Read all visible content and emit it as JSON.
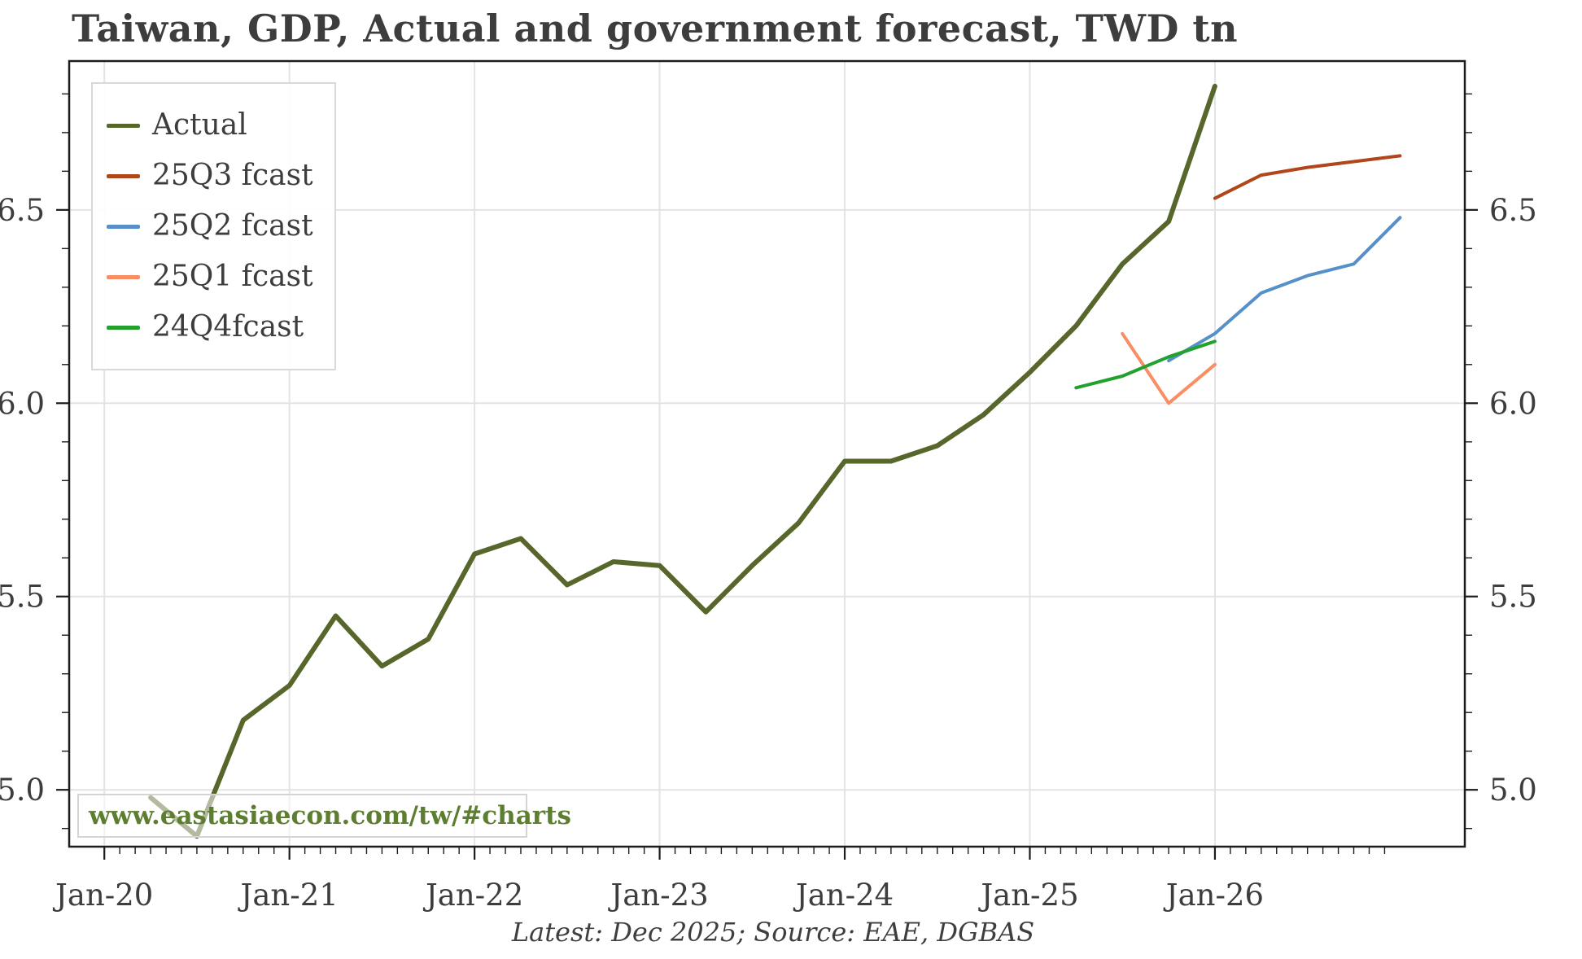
{
  "title": "Taiwan, GDP, Actual and government forecast, TWD tn",
  "footer": "Latest: Dec 2025; Source: EAE, DGBAS",
  "watermark": "www.eastasiaecon.com/tw/#charts",
  "colors": {
    "background": "#ffffff",
    "grid": "#e3e3e3",
    "spine": "#1c1c1c",
    "text": "#3d3d3d",
    "watermark_text": "#5d7e31",
    "actual": "#57662a",
    "fcast_25q3": "#b2451a",
    "fcast_25q2": "#5590c8",
    "fcast_25q1": "#fb8d64",
    "fcast_24q4": "#22a12f"
  },
  "chart_data": {
    "type": "line",
    "title": "Taiwan, GDP, Actual and government forecast, TWD tn",
    "xlabel": "",
    "ylabel": "",
    "xlim": [
      2019.81,
      2027.35
    ],
    "ylim": [
      4.853,
      6.885
    ],
    "grid": true,
    "legend_position": "top-left",
    "x_major_ticks": [
      2020,
      2021,
      2022,
      2023,
      2024,
      2025,
      2026
    ],
    "x_tick_labels": [
      "Jan-20",
      "Jan-21",
      "Jan-22",
      "Jan-23",
      "Jan-24",
      "Jan-25",
      "Jan-26"
    ],
    "x_minor_tick_months": 1,
    "y_major_ticks": [
      5.0,
      5.5,
      6.0,
      6.5
    ],
    "y_tick_labels": [
      "5.0",
      "5.5",
      "6.0",
      "6.5"
    ],
    "y_minor_step": 0.1,
    "series": [
      {
        "name": "Actual",
        "color": "#57662a",
        "line_width": 6,
        "x": [
          2020.25,
          2020.5,
          2020.75,
          2021.0,
          2021.25,
          2021.5,
          2021.75,
          2022.0,
          2022.25,
          2022.5,
          2022.75,
          2023.0,
          2023.25,
          2023.5,
          2023.75,
          2024.0,
          2024.25,
          2024.5,
          2024.75,
          2025.0,
          2025.25,
          2025.5,
          2025.75,
          2026.0
        ],
        "values": [
          4.98,
          4.88,
          5.18,
          5.27,
          5.45,
          5.32,
          5.39,
          5.61,
          5.65,
          5.53,
          5.59,
          5.58,
          5.46,
          5.58,
          5.69,
          5.85,
          5.85,
          5.89,
          5.97,
          6.08,
          6.2,
          6.36,
          6.47,
          6.82
        ]
      },
      {
        "name": "25Q3 fcast",
        "color": "#b2451a",
        "line_width": 4,
        "x": [
          2026.0,
          2026.25,
          2026.5,
          2026.75,
          2027.0
        ],
        "values": [
          6.53,
          6.59,
          6.61,
          6.625,
          6.64
        ]
      },
      {
        "name": "25Q2 fcast",
        "color": "#5590c8",
        "line_width": 4,
        "x": [
          2025.75,
          2026.0,
          2026.25,
          2026.5,
          2026.75,
          2027.0
        ],
        "values": [
          6.11,
          6.18,
          6.285,
          6.33,
          6.36,
          6.48
        ]
      },
      {
        "name": "25Q1 fcast",
        "color": "#fb8d64",
        "line_width": 4,
        "x": [
          2025.5,
          2025.75,
          2026.0
        ],
        "values": [
          6.18,
          6.0,
          6.1
        ]
      },
      {
        "name": "24Q4fcast",
        "color": "#22a12f",
        "line_width": 4,
        "x": [
          2025.25,
          2025.5,
          2025.75,
          2026.0
        ],
        "values": [
          6.04,
          6.07,
          6.12,
          6.16
        ]
      }
    ]
  }
}
